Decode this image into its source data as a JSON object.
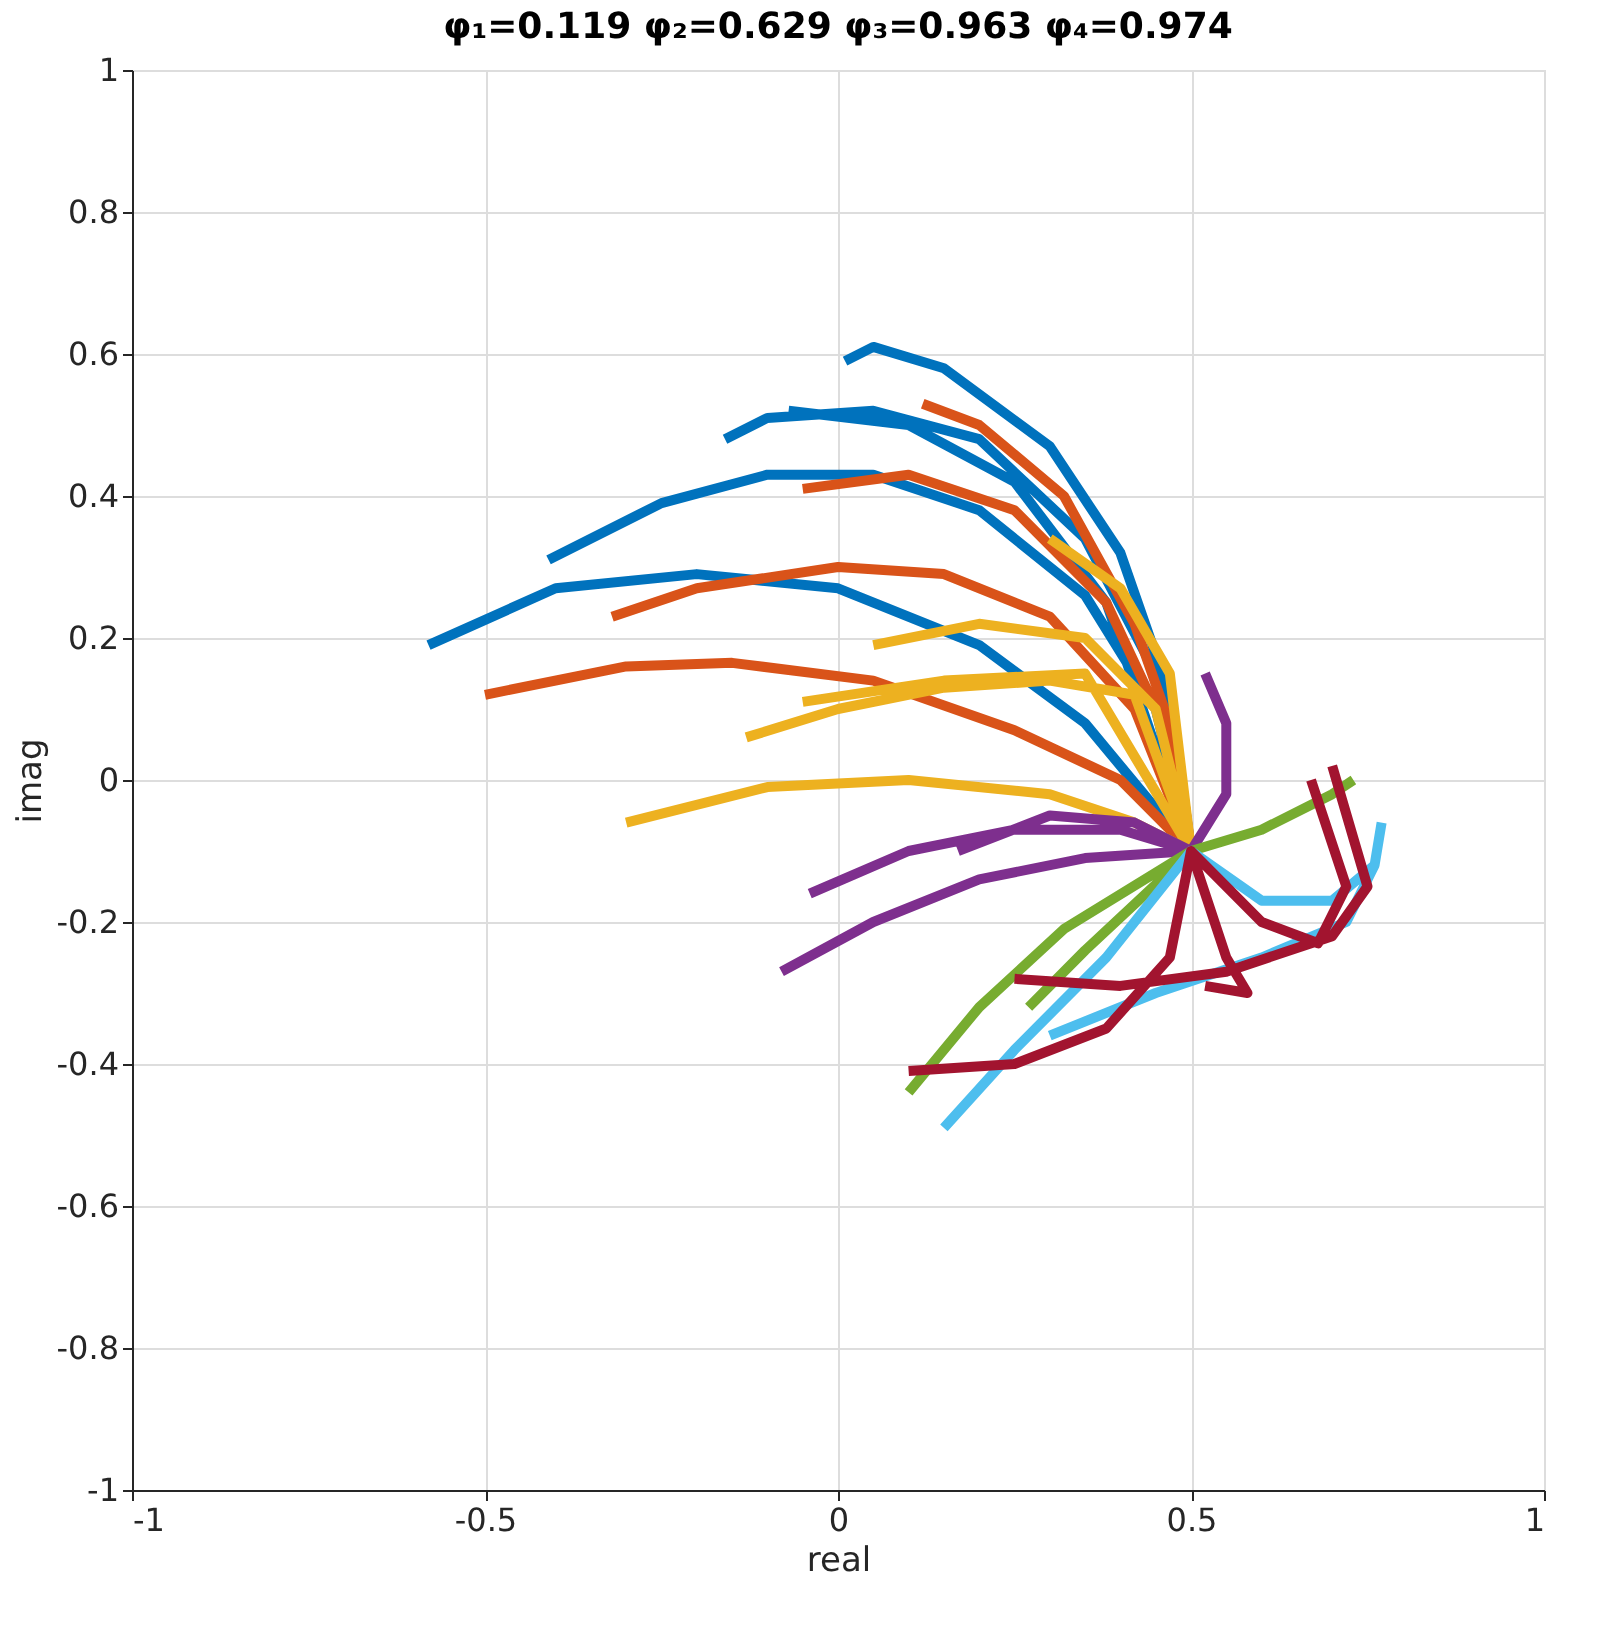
{
  "chart_data": {
    "type": "line",
    "title": "φ₁=0.119 φ₂=0.629 φ₃=0.963 φ₄=0.974",
    "xlabel": "real",
    "ylabel": "imag",
    "xlim": [
      -1,
      1
    ],
    "xticks": [
      -1,
      -0.5,
      0,
      0.5,
      1
    ],
    "ylim": [
      -1,
      1
    ],
    "yticks": [
      -1,
      -0.8,
      -0.6,
      -0.4,
      -0.2,
      0,
      0.2,
      0.4,
      0.6,
      0.8,
      1
    ],
    "grid": true,
    "legend": false,
    "marker": "none",
    "line_style": "solid",
    "series": [
      {
        "color": "#0072bd",
        "x": [
          -0.58,
          -0.4,
          -0.2,
          0,
          0.2,
          0.35,
          0.5,
          0.45,
          0.35,
          0.2,
          0.05,
          -0.1,
          -0.25,
          -0.41,
          null,
          -0.16,
          -0.1,
          0.05,
          0.2,
          0.35,
          0.45,
          0.5,
          0.47,
          0.4,
          0.3,
          0.15,
          0.05,
          0.01,
          null,
          -0.07,
          0.1,
          0.25,
          0.38,
          0.5
        ],
        "values": [
          0.19,
          0.27,
          0.29,
          0.27,
          0.19,
          0.08,
          -0.1,
          0.1,
          0.26,
          0.38,
          0.43,
          0.43,
          0.39,
          0.31,
          null,
          0.48,
          0.51,
          0.52,
          0.48,
          0.34,
          0.15,
          -0.1,
          0.12,
          0.32,
          0.47,
          0.58,
          0.61,
          0.59,
          null,
          0.52,
          0.5,
          0.42,
          0.25,
          -0.1
        ]
      },
      {
        "color": "#d95319",
        "x": [
          -0.5,
          -0.3,
          -0.15,
          0.05,
          0.25,
          0.4,
          0.5,
          0.42,
          0.3,
          0.15,
          0,
          -0.2,
          -0.32,
          null,
          -0.05,
          0.1,
          0.25,
          0.38,
          0.46,
          0.5,
          0.48,
          0.42,
          0.32,
          0.2,
          0.12
        ],
        "values": [
          0.12,
          0.16,
          0.165,
          0.14,
          0.07,
          0,
          -0.1,
          0.1,
          0.23,
          0.29,
          0.3,
          0.27,
          0.23,
          null,
          0.41,
          0.43,
          0.38,
          0.25,
          0.08,
          -0.1,
          0.05,
          0.22,
          0.4,
          0.5,
          0.53
        ]
      },
      {
        "color": "#edb120",
        "x": [
          -0.3,
          -0.1,
          0.1,
          0.3,
          0.42,
          0.5,
          0.42,
          0.3,
          0.15,
          0,
          -0.13,
          null,
          -0.05,
          0.15,
          0.35,
          0.5,
          0.45,
          0.35,
          0.2,
          0.05,
          null,
          0.3,
          0.4,
          0.47,
          0.5
        ],
        "values": [
          -0.06,
          -0.01,
          0,
          -0.02,
          -0.06,
          -0.1,
          0.12,
          0.14,
          0.13,
          0.1,
          0.06,
          null,
          0.11,
          0.14,
          0.15,
          -0.1,
          0.1,
          0.2,
          0.22,
          0.19,
          null,
          0.34,
          0.27,
          0.15,
          -0.1
        ]
      },
      {
        "color": "#7e2f8e",
        "x": [
          -0.08,
          0.05,
          0.2,
          0.35,
          0.5,
          0.4,
          0.25,
          0.1,
          -0.04,
          null,
          0.17,
          0.3,
          0.42,
          0.5,
          0.55,
          0.55,
          0.52
        ],
        "values": [
          -0.27,
          -0.2,
          -0.14,
          -0.11,
          -0.1,
          -0.07,
          -0.07,
          -0.1,
          -0.16,
          null,
          -0.1,
          -0.05,
          -0.06,
          -0.1,
          -0.02,
          0.08,
          0.15
        ]
      },
      {
        "color": "#77ac30",
        "x": [
          0.1,
          0.2,
          0.32,
          0.5,
          0.6,
          0.7,
          0.73,
          null,
          0.27,
          0.35,
          0.49
        ],
        "values": [
          -0.44,
          -0.32,
          -0.21,
          -0.1,
          -0.07,
          -0.02,
          0,
          null,
          -0.32,
          -0.24,
          -0.11
        ]
      },
      {
        "color": "#4dbeee",
        "x": [
          0.15,
          0.25,
          0.38,
          0.5,
          0.6,
          0.7,
          0.76,
          0.77,
          null,
          0.3,
          0.45,
          0.6,
          0.72,
          0.76
        ],
        "values": [
          -0.49,
          -0.38,
          -0.25,
          -0.1,
          -0.17,
          -0.17,
          -0.12,
          -0.06,
          null,
          -0.36,
          -0.3,
          -0.25,
          -0.2,
          -0.12
        ]
      },
      {
        "color": "#a2142f",
        "x": [
          0.1,
          0.25,
          0.38,
          0.47,
          0.5,
          0.55,
          0.58,
          0.52,
          null,
          0.25,
          0.4,
          0.55,
          0.7,
          0.75,
          0.7,
          null,
          0.5,
          0.6,
          0.68,
          0.72,
          0.67
        ],
        "values": [
          -0.41,
          -0.4,
          -0.35,
          -0.25,
          -0.1,
          -0.25,
          -0.3,
          -0.29,
          null,
          -0.28,
          -0.29,
          -0.27,
          -0.22,
          -0.15,
          0.02,
          null,
          -0.1,
          -0.2,
          -0.23,
          -0.15,
          0
        ]
      }
    ]
  }
}
